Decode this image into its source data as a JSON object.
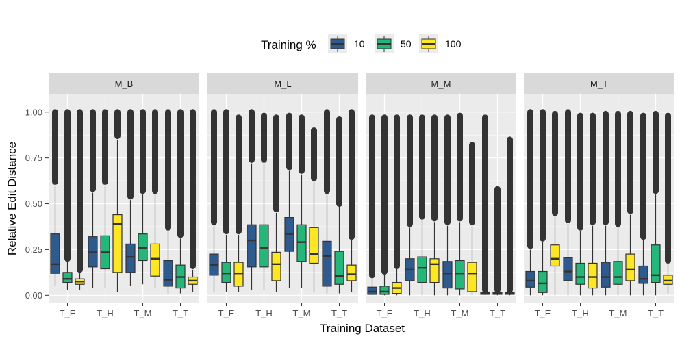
{
  "chart_data": {
    "type": "boxplot",
    "title": "",
    "xlabel": "Training Dataset",
    "ylabel": "Relative Edit Distance",
    "ylim": [
      -0.04,
      1.1
    ],
    "yticks": [
      0.0,
      0.25,
      0.5,
      0.75,
      1.0
    ],
    "ytick_labels": [
      "0.00",
      "0.25",
      "0.50",
      "0.75",
      "1.00"
    ],
    "categories": [
      "T_E",
      "T_H",
      "T_M",
      "T_T"
    ],
    "legend": {
      "title": "Training %",
      "position": "top",
      "entries": [
        {
          "label": "10",
          "color": "#2f5a8e"
        },
        {
          "label": "50",
          "color": "#25b67a"
        },
        {
          "label": "100",
          "color": "#fde725"
        }
      ]
    },
    "panels": [
      {
        "label": "M_B",
        "boxes": [
          [
            {
              "q1": 0.12,
              "med": 0.17,
              "q3": 0.335,
              "lo": 0.05,
              "hi": 0.6,
              "out_lo": 0.62,
              "out_hi": 1.0
            },
            {
              "q1": 0.07,
              "med": 0.09,
              "q3": 0.125,
              "lo": 0.03,
              "hi": 0.19,
              "out_lo": 0.2,
              "out_hi": 1.0
            },
            {
              "q1": 0.06,
              "med": 0.075,
              "q3": 0.09,
              "lo": 0.03,
              "hi": 0.13,
              "out_lo": 0.14,
              "out_hi": 1.0
            }
          ],
          [
            {
              "q1": 0.155,
              "med": 0.235,
              "q3": 0.32,
              "lo": 0.04,
              "hi": 0.56,
              "out_lo": 0.58,
              "out_hi": 1.0
            },
            {
              "q1": 0.145,
              "med": 0.235,
              "q3": 0.325,
              "lo": 0.04,
              "hi": 0.6,
              "out_lo": 0.62,
              "out_hi": 1.0
            },
            {
              "q1": 0.125,
              "med": 0.39,
              "q3": 0.44,
              "lo": 0.02,
              "hi": 0.85,
              "out_lo": 0.87,
              "out_hi": 1.0
            }
          ],
          [
            {
              "q1": 0.125,
              "med": 0.21,
              "q3": 0.28,
              "lo": 0.05,
              "hi": 0.52,
              "out_lo": 0.54,
              "out_hi": 1.0
            },
            {
              "q1": 0.19,
              "med": 0.26,
              "q3": 0.335,
              "lo": 0.06,
              "hi": 0.55,
              "out_lo": 0.57,
              "out_hi": 1.0
            },
            {
              "q1": 0.105,
              "med": 0.2,
              "q3": 0.28,
              "lo": 0.04,
              "hi": 0.55,
              "out_lo": 0.57,
              "out_hi": 1.0
            }
          ],
          [
            {
              "q1": 0.05,
              "med": 0.085,
              "q3": 0.19,
              "lo": 0.01,
              "hi": 0.35,
              "out_lo": 0.37,
              "out_hi": 1.0
            },
            {
              "q1": 0.04,
              "med": 0.1,
              "q3": 0.165,
              "lo": 0.01,
              "hi": 0.31,
              "out_lo": 0.33,
              "out_hi": 1.0
            },
            {
              "q1": 0.06,
              "med": 0.08,
              "q3": 0.1,
              "lo": 0.02,
              "hi": 0.14,
              "out_lo": 0.16,
              "out_hi": 1.0
            }
          ]
        ]
      },
      {
        "label": "M_L",
        "boxes": [
          [
            {
              "q1": 0.11,
              "med": 0.165,
              "q3": 0.225,
              "lo": 0.02,
              "hi": 0.39,
              "out_lo": 0.4,
              "out_hi": 1.0
            },
            {
              "q1": 0.07,
              "med": 0.12,
              "q3": 0.18,
              "lo": 0.02,
              "hi": 0.33,
              "out_lo": 0.35,
              "out_hi": 1.0
            },
            {
              "q1": 0.05,
              "med": 0.12,
              "q3": 0.18,
              "lo": 0.02,
              "hi": 0.33,
              "out_lo": 0.35,
              "out_hi": 0.97
            }
          ],
          [
            {
              "q1": 0.155,
              "med": 0.3,
              "q3": 0.385,
              "lo": 0.03,
              "hi": 0.72,
              "out_lo": 0.74,
              "out_hi": 1.0
            },
            {
              "q1": 0.155,
              "med": 0.26,
              "q3": 0.385,
              "lo": 0.03,
              "hi": 0.72,
              "out_lo": 0.74,
              "out_hi": 0.98
            },
            {
              "q1": 0.08,
              "med": 0.17,
              "q3": 0.235,
              "lo": 0.02,
              "hi": 0.45,
              "out_lo": 0.47,
              "out_hi": 0.97
            }
          ],
          [
            {
              "q1": 0.24,
              "med": 0.335,
              "q3": 0.425,
              "lo": 0.04,
              "hi": 0.68,
              "out_lo": 0.7,
              "out_hi": 0.98
            },
            {
              "q1": 0.185,
              "med": 0.29,
              "q3": 0.385,
              "lo": 0.04,
              "hi": 0.66,
              "out_lo": 0.68,
              "out_hi": 0.97
            },
            {
              "q1": 0.175,
              "med": 0.225,
              "q3": 0.37,
              "lo": 0.02,
              "hi": 0.62,
              "out_lo": 0.64,
              "out_hi": 0.9
            }
          ],
          [
            {
              "q1": 0.05,
              "med": 0.215,
              "q3": 0.295,
              "lo": 0.01,
              "hi": 0.55,
              "out_lo": 0.57,
              "out_hi": 1.0
            },
            {
              "q1": 0.06,
              "med": 0.105,
              "q3": 0.24,
              "lo": 0.01,
              "hi": 0.48,
              "out_lo": 0.5,
              "out_hi": 0.96
            },
            {
              "q1": 0.08,
              "med": 0.115,
              "q3": 0.165,
              "lo": 0.02,
              "hi": 0.3,
              "out_lo": 0.32,
              "out_hi": 1.0
            }
          ]
        ]
      },
      {
        "label": "M_M",
        "boxes": [
          [
            {
              "q1": 0.005,
              "med": 0.02,
              "q3": 0.045,
              "lo": 0.0,
              "hi": 0.1,
              "out_lo": 0.11,
              "out_hi": 0.97
            },
            {
              "q1": 0.005,
              "med": 0.02,
              "q3": 0.05,
              "lo": 0.0,
              "hi": 0.12,
              "out_lo": 0.13,
              "out_hi": 0.97
            },
            {
              "q1": 0.01,
              "med": 0.04,
              "q3": 0.07,
              "lo": 0.0,
              "hi": 0.15,
              "out_lo": 0.16,
              "out_hi": 0.97
            }
          ],
          [
            {
              "q1": 0.08,
              "med": 0.14,
              "q3": 0.2,
              "lo": 0.0,
              "hi": 0.37,
              "out_lo": 0.39,
              "out_hi": 0.97
            },
            {
              "q1": 0.07,
              "med": 0.15,
              "q3": 0.21,
              "lo": 0.0,
              "hi": 0.41,
              "out_lo": 0.43,
              "out_hi": 0.97
            },
            {
              "q1": 0.07,
              "med": 0.17,
              "q3": 0.2,
              "lo": 0.0,
              "hi": 0.4,
              "out_lo": 0.42,
              "out_hi": 0.97
            }
          ],
          [
            {
              "q1": 0.04,
              "med": 0.12,
              "q3": 0.185,
              "lo": 0.0,
              "hi": 0.38,
              "out_lo": 0.4,
              "out_hi": 0.97
            },
            {
              "q1": 0.035,
              "med": 0.12,
              "q3": 0.19,
              "lo": 0.0,
              "hi": 0.4,
              "out_lo": 0.42,
              "out_hi": 0.98
            },
            {
              "q1": 0.02,
              "med": 0.12,
              "q3": 0.18,
              "lo": 0.0,
              "hi": 0.38,
              "out_lo": 0.4,
              "out_hi": 0.82
            }
          ],
          [
            {
              "q1": 0.005,
              "med": 0.01,
              "q3": 0.015,
              "lo": 0.0,
              "hi": 0.02,
              "out_lo": 0.03,
              "out_hi": 0.97
            },
            {
              "q1": 0.005,
              "med": 0.01,
              "q3": 0.015,
              "lo": 0.0,
              "hi": 0.02,
              "out_lo": 0.03,
              "out_hi": 0.58
            },
            {
              "q1": 0.005,
              "med": 0.01,
              "q3": 0.015,
              "lo": 0.0,
              "hi": 0.02,
              "out_lo": 0.03,
              "out_hi": 0.85
            }
          ]
        ]
      },
      {
        "label": "M_T",
        "boxes": [
          [
            {
              "q1": 0.045,
              "med": 0.08,
              "q3": 0.13,
              "lo": 0.0,
              "hi": 0.25,
              "out_lo": 0.27,
              "out_hi": 1.0
            },
            {
              "q1": 0.015,
              "med": 0.065,
              "q3": 0.13,
              "lo": 0.0,
              "hi": 0.29,
              "out_lo": 0.31,
              "out_hi": 1.0
            },
            {
              "q1": 0.16,
              "med": 0.2,
              "q3": 0.275,
              "lo": 0.0,
              "hi": 0.43,
              "out_lo": 0.45,
              "out_hi": 0.99
            }
          ],
          [
            {
              "q1": 0.08,
              "med": 0.13,
              "q3": 0.205,
              "lo": 0.0,
              "hi": 0.39,
              "out_lo": 0.41,
              "out_hi": 1.0
            },
            {
              "q1": 0.06,
              "med": 0.1,
              "q3": 0.175,
              "lo": 0.0,
              "hi": 0.35,
              "out_lo": 0.37,
              "out_hi": 0.98
            },
            {
              "q1": 0.04,
              "med": 0.1,
              "q3": 0.175,
              "lo": 0.0,
              "hi": 0.38,
              "out_lo": 0.4,
              "out_hi": 0.98
            }
          ],
          [
            {
              "q1": 0.045,
              "med": 0.1,
              "q3": 0.18,
              "lo": 0.0,
              "hi": 0.38,
              "out_lo": 0.4,
              "out_hi": 0.99
            },
            {
              "q1": 0.06,
              "med": 0.1,
              "q3": 0.185,
              "lo": 0.0,
              "hi": 0.37,
              "out_lo": 0.39,
              "out_hi": 0.99
            },
            {
              "q1": 0.08,
              "med": 0.14,
              "q3": 0.225,
              "lo": 0.0,
              "hi": 0.44,
              "out_lo": 0.46,
              "out_hi": 0.99
            }
          ],
          [
            {
              "q1": 0.065,
              "med": 0.09,
              "q3": 0.16,
              "lo": 0.0,
              "hi": 0.3,
              "out_lo": 0.32,
              "out_hi": 0.98
            },
            {
              "q1": 0.07,
              "med": 0.11,
              "q3": 0.275,
              "lo": 0.0,
              "hi": 0.55,
              "out_lo": 0.57,
              "out_hi": 0.99
            },
            {
              "q1": 0.06,
              "med": 0.08,
              "q3": 0.11,
              "lo": 0.01,
              "hi": 0.17,
              "out_lo": 0.19,
              "out_hi": 0.98
            }
          ]
        ]
      }
    ]
  }
}
